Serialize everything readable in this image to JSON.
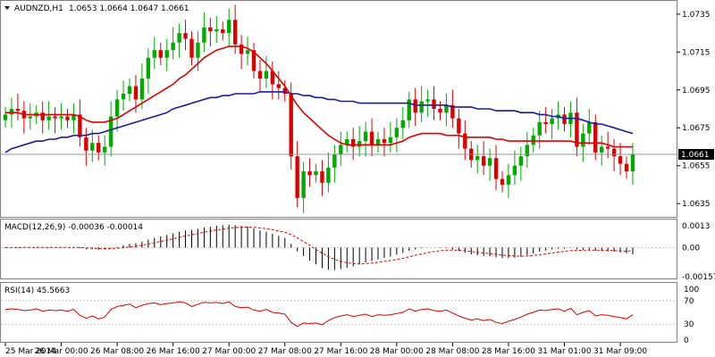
{
  "main": {
    "symbol": "AUDNZD,H1",
    "ohlc": "1.0653 1.0664 1.0647 1.0661",
    "last_price": "1.0661",
    "price_ticks": [
      "1.0735",
      "1.0715",
      "1.0695",
      "1.0675",
      "1.0655",
      "1.0635"
    ]
  },
  "macd": {
    "label": "MACD(12,26,9) -0.00036 -0.00014",
    "ticks": [
      "0.0013",
      "0.00",
      "-0.00157"
    ]
  },
  "rsi": {
    "label": "RSI(14) 45.5663",
    "ticks": [
      "100",
      "70",
      "30",
      "0"
    ]
  },
  "time_labels": [
    "25 Mar 2014",
    "26 Mar 00:00",
    "26 Mar 08:00",
    "26 Mar 16:00",
    "27 Mar 00:00",
    "27 Mar 08:00",
    "27 Mar 16:00",
    "28 Mar 00:00",
    "28 Mar 08:00",
    "28 Mar 16:00",
    "31 Mar 01:00",
    "31 Mar 09:00"
  ],
  "colors": {
    "bull": "#00aa00",
    "bear": "#dd0000",
    "ma_fast": "#e00000",
    "ma_slow": "#1a1aa0",
    "grid": "#c8c8c8"
  },
  "chart_data": {
    "type": "line",
    "ylim": [
      1.0628,
      1.0742
    ],
    "closes": [
      1.0682,
      1.0685,
      1.0684,
      1.068,
      1.0681,
      1.0683,
      1.0679,
      1.0681,
      1.068,
      1.0681,
      1.0679,
      1.0682,
      1.067,
      1.0663,
      1.0667,
      1.0662,
      1.0665,
      1.0681,
      1.069,
      1.0693,
      1.0697,
      1.069,
      1.0701,
      1.0712,
      1.0716,
      1.0712,
      1.0716,
      1.072,
      1.0725,
      1.0722,
      1.0712,
      1.072,
      1.0728,
      1.0726,
      1.0727,
      1.0725,
      1.0732,
      1.0719,
      1.0714,
      1.0716,
      1.0705,
      1.0701,
      1.0705,
      1.0698,
      1.0696,
      1.0693,
      1.066,
      1.0638,
      1.0652,
      1.065,
      1.0652,
      1.0646,
      1.0654,
      1.0661,
      1.0666,
      1.0669,
      1.0665,
      1.0668,
      1.0673,
      1.0666,
      1.0669,
      1.0667,
      1.067,
      1.0675,
      1.0679,
      1.069,
      1.0683,
      1.0689,
      1.069,
      1.0685,
      1.0683,
      1.0687,
      1.068,
      1.0672,
      1.0664,
      1.0658,
      1.066,
      1.0655,
      1.0659,
      1.0648,
      1.0645,
      1.065,
      1.0655,
      1.066,
      1.0666,
      1.0671,
      1.0678,
      1.0677,
      1.068,
      1.0682,
      1.0677,
      1.0683,
      1.0665,
      1.0672,
      1.0678,
      1.0662,
      1.0665,
      1.0664,
      1.066,
      1.0656,
      1.0652,
      1.0661
    ],
    "ma_fast": [
      1.0683,
      1.0683,
      1.0683,
      1.0682,
      1.0682,
      1.0682,
      1.0682,
      1.0682,
      1.0682,
      1.0682,
      1.0682,
      1.0682,
      1.0681,
      1.0679,
      1.0678,
      1.0678,
      1.0678,
      1.0679,
      1.068,
      1.0682,
      1.0684,
      1.0686,
      1.0688,
      1.069,
      1.0692,
      1.0694,
      1.0696,
      1.0698,
      1.0701,
      1.0703,
      1.0706,
      1.0709,
      1.0712,
      1.0714,
      1.0716,
      1.0717,
      1.0718,
      1.0718,
      1.0718,
      1.0717,
      1.0715,
      1.0712,
      1.0709,
      1.0705,
      1.0701,
      1.0697,
      1.0692,
      1.0687,
      1.0683,
      1.068,
      1.0677,
      1.0674,
      1.0671,
      1.0669,
      1.0667,
      1.0666,
      1.0666,
      1.0666,
      1.0666,
      1.0666,
      1.0666,
      1.0666,
      1.0666,
      1.0667,
      1.0668,
      1.067,
      1.0671,
      1.0672,
      1.0672,
      1.0672,
      1.0672,
      1.0671,
      1.0671,
      1.0671,
      1.067,
      1.067,
      1.067,
      1.067,
      1.067,
      1.0669,
      1.0669,
      1.0668,
      1.0668,
      1.0668,
      1.0668,
      1.0668,
      1.0668,
      1.0668,
      1.0668,
      1.0668,
      1.0668,
      1.0668,
      1.0667,
      1.0667,
      1.0667,
      1.0667,
      1.0667,
      1.0666,
      1.0665,
      1.0665,
      1.0665,
      1.0665
    ],
    "ma_slow": [
      1.0662,
      1.0664,
      1.0665,
      1.0666,
      1.0667,
      1.0668,
      1.0668,
      1.0669,
      1.0669,
      1.067,
      1.067,
      1.0671,
      1.0671,
      1.0671,
      1.0672,
      1.0672,
      1.0673,
      1.0674,
      1.0675,
      1.0676,
      1.0677,
      1.0678,
      1.0679,
      1.068,
      1.0681,
      1.0682,
      1.0683,
      1.0685,
      1.0686,
      1.0687,
      1.0688,
      1.0689,
      1.069,
      1.0691,
      1.0691,
      1.0692,
      1.0692,
      1.0693,
      1.0693,
      1.0693,
      1.0693,
      1.0694,
      1.0694,
      1.0694,
      1.0694,
      1.0694,
      1.0693,
      1.0693,
      1.0692,
      1.0692,
      1.0691,
      1.0691,
      1.069,
      1.069,
      1.0689,
      1.0689,
      1.0689,
      1.0688,
      1.0688,
      1.0688,
      1.0688,
      1.0688,
      1.0688,
      1.0688,
      1.0688,
      1.0688,
      1.0687,
      1.0687,
      1.0687,
      1.0687,
      1.0687,
      1.0687,
      1.0686,
      1.0686,
      1.0686,
      1.0686,
      1.0685,
      1.0685,
      1.0685,
      1.0684,
      1.0684,
      1.0684,
      1.0684,
      1.0683,
      1.0683,
      1.0683,
      1.0682,
      1.0682,
      1.0681,
      1.0681,
      1.068,
      1.068,
      1.068,
      1.0679,
      1.0678,
      1.0677,
      1.0677,
      1.0676,
      1.0675,
      1.0674,
      1.0673,
      1.0672
    ],
    "macd_ylim": [
      -0.00165,
      0.0015
    ],
    "macd_hist": [
      -2e-05,
      0.0,
      2e-05,
      1e-05,
      1e-05,
      2e-05,
      1e-05,
      1e-05,
      1e-05,
      1e-05,
      0.0,
      1e-05,
      -4e-05,
      -9e-05,
      -8e-05,
      -0.00011,
      -9e-05,
      -3e-05,
      4e-05,
      0.00012,
      0.0002,
      0.00024,
      0.00032,
      0.00043,
      0.00053,
      0.0006,
      0.00068,
      0.00076,
      0.00085,
      0.00092,
      0.00095,
      0.00101,
      0.00108,
      0.00112,
      0.00117,
      0.00119,
      0.00123,
      0.0012,
      0.00115,
      0.00112,
      0.00102,
      0.00092,
      0.00085,
      0.00074,
      0.00063,
      0.00052,
      0.0002,
      -0.0002,
      -0.00045,
      -0.0007,
      -0.0009,
      -0.0011,
      -0.00118,
      -0.0012,
      -0.00115,
      -0.00108,
      -0.001,
      -0.0009,
      -0.0008,
      -0.00072,
      -0.00063,
      -0.00055,
      -0.00047,
      -0.00038,
      -0.00028,
      -0.00017,
      -0.0001,
      -4e-05,
      0.0,
      0.0,
      -2e-05,
      -4e-05,
      -0.0001,
      -0.00018,
      -0.00028,
      -0.00036,
      -0.0004,
      -0.00045,
      -0.00046,
      -0.00052,
      -0.00056,
      -0.00056,
      -0.00054,
      -0.00048,
      -0.0004,
      -0.00032,
      -0.00022,
      -0.00016,
      -0.0001,
      -6e-05,
      -6e-05,
      -2e-05,
      -0.0001,
      -0.00012,
      -0.0001,
      -0.00016,
      -0.00018,
      -0.0002,
      -0.00022,
      -0.00026,
      -0.0003,
      -0.00036
    ],
    "macd_signal": [
      0.0,
      0.0,
      0.0,
      1e-05,
      1e-05,
      1e-05,
      1e-05,
      1e-05,
      1e-05,
      1e-05,
      1e-05,
      1e-05,
      0.0,
      -2e-05,
      -3e-05,
      -5e-05,
      -6e-05,
      -5e-05,
      -3e-05,
      0.0,
      4e-05,
      8e-05,
      0.00013,
      0.00019,
      0.00026,
      0.00033,
      0.0004,
      0.00047,
      0.00055,
      0.00062,
      0.00069,
      0.00075,
      0.00082,
      0.00088,
      0.00094,
      0.00099,
      0.00104,
      0.00107,
      0.00109,
      0.0011,
      0.00108,
      0.00105,
      0.00101,
      0.00096,
      0.00089,
      0.00082,
      0.0007,
      0.00052,
      0.00032,
      0.00012,
      -0.0001,
      -0.0003,
      -0.00048,
      -0.00063,
      -0.00074,
      -0.00081,
      -0.00086,
      -0.00087,
      -0.00086,
      -0.00083,
      -0.00079,
      -0.00074,
      -0.00069,
      -0.00063,
      -0.00057,
      -0.00049,
      -0.00041,
      -0.00034,
      -0.00027,
      -0.00021,
      -0.00017,
      -0.00014,
      -0.00013,
      -0.00014,
      -0.00017,
      -0.00021,
      -0.00025,
      -0.00029,
      -0.00032,
      -0.00036,
      -0.0004,
      -0.00043,
      -0.00045,
      -0.00046,
      -0.00045,
      -0.00042,
      -0.00038,
      -0.00034,
      -0.00029,
      -0.00024,
      -0.0002,
      -0.00016,
      -0.00015,
      -0.00014,
      -0.00013,
      -0.00013,
      -0.00014,
      -0.00015,
      -0.00016,
      -0.00018,
      -0.0002,
      -0.00014
    ],
    "rsi_ylim": [
      0,
      100
    ],
    "rsi": [
      55,
      56,
      55,
      53,
      54,
      56,
      52,
      54,
      53,
      54,
      52,
      55,
      45,
      40,
      44,
      39,
      42,
      55,
      60,
      62,
      64,
      58,
      62,
      65,
      66,
      63,
      65,
      66,
      68,
      66,
      60,
      64,
      67,
      66,
      67,
      65,
      68,
      60,
      58,
      59,
      54,
      52,
      55,
      50,
      49,
      47,
      33,
      26,
      32,
      31,
      32,
      29,
      36,
      41,
      44,
      46,
      43,
      45,
      47,
      43,
      46,
      45,
      46,
      48,
      50,
      56,
      52,
      55,
      56,
      53,
      52,
      54,
      49,
      44,
      40,
      37,
      39,
      36,
      38,
      33,
      31,
      35,
      38,
      42,
      47,
      50,
      54,
      53,
      55,
      56,
      52,
      57,
      46,
      50,
      53,
      44,
      46,
      45,
      43,
      41,
      39,
      46
    ]
  }
}
